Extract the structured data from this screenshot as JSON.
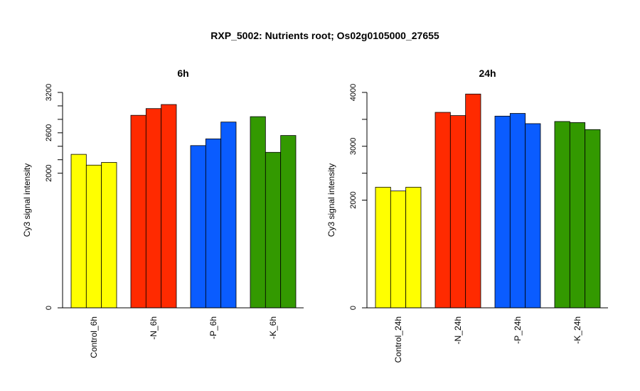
{
  "title": "RXP_5002: Nutrients root; Os02g0105000_27655",
  "chart_data": [
    {
      "type": "bar",
      "title": "6h",
      "ylabel": "Cy3 signal intensity",
      "categories": [
        "Control_6h",
        "-N_6h",
        "-P_6h",
        "-K_6h"
      ],
      "colors": [
        "#ffff00",
        "#ff2a00",
        "#0a5cff",
        "#339900"
      ],
      "values": [
        [
          2280,
          2120,
          2160
        ],
        [
          2860,
          2960,
          3020
        ],
        [
          2410,
          2510,
          2760
        ],
        [
          2840,
          2310,
          2560
        ]
      ],
      "ylim": [
        0,
        3200
      ],
      "y_ticks": [
        0,
        2000,
        2600,
        3200
      ],
      "y_minor_ticks": [
        2200,
        2400,
        2800,
        3000
      ],
      "grid": false
    },
    {
      "type": "bar",
      "title": "24h",
      "ylabel": "Cy3 signal intensity",
      "categories": [
        "Control_24h",
        "-N_24h",
        "-P_24h",
        "-K_24h"
      ],
      "colors": [
        "#ffff00",
        "#ff2a00",
        "#0a5cff",
        "#339900"
      ],
      "values": [
        [
          2240,
          2170,
          2240
        ],
        [
          3630,
          3570,
          3970
        ],
        [
          3560,
          3610,
          3420
        ],
        [
          3460,
          3440,
          3310
        ]
      ],
      "ylim": [
        0,
        4000
      ],
      "y_ticks": [
        0,
        2000,
        3000,
        4000
      ],
      "y_minor_ticks": [
        2500,
        3500
      ],
      "grid": false
    }
  ]
}
